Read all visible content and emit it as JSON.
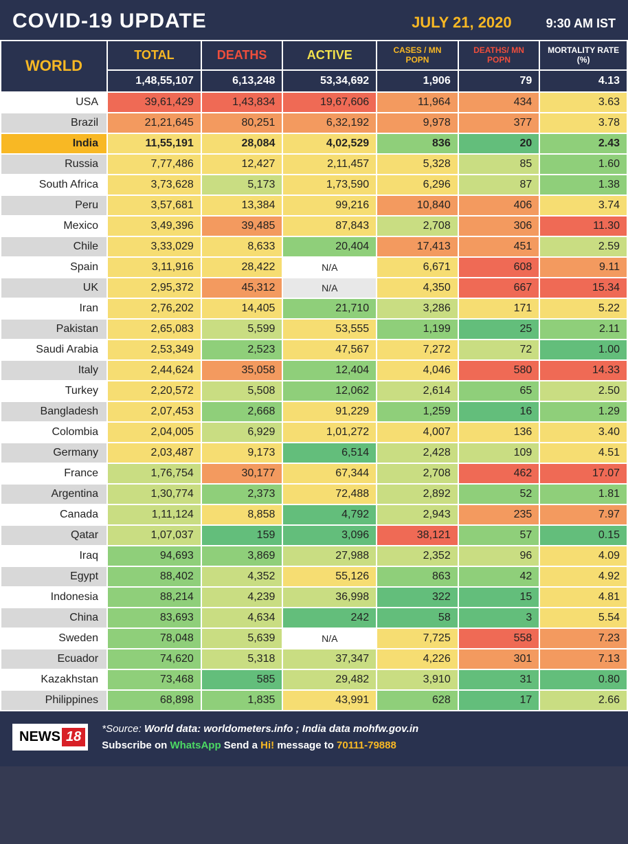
{
  "header": {
    "title": "COVID-19 UPDATE",
    "date": "JULY 21, 2020",
    "time": "9:30 AM IST"
  },
  "columns": {
    "world": "WORLD",
    "total": "TOTAL",
    "deaths": "DEATHS",
    "active": "ACTIVE",
    "cases_mn": "CASES / MN POPN",
    "deaths_mn": "DEATHS/ MN POPN",
    "mortality": "MORTALITY RATE (%)"
  },
  "worldrow": {
    "total": "1,48,55,107",
    "deaths": "6,13,248",
    "active": "53,34,692",
    "cases_mn": "1,906",
    "deaths_mn": "79",
    "mortality": "4.13"
  },
  "palette": {
    "r": "#ef6a55",
    "o": "#f39a5f",
    "y": "#f6dd72",
    "lg": "#c9dd82",
    "g": "#8fcf7a",
    "dg": "#63be7b",
    "w": "#ffffff",
    "gr": "#e8e8e8"
  },
  "col_widths": [
    "17%",
    "15%",
    "13%",
    "15%",
    "13%",
    "13%",
    "14%"
  ],
  "rows": [
    {
      "country": "USA",
      "alt": false,
      "highlight": false,
      "cells": [
        [
          "39,61,429",
          "r"
        ],
        [
          "1,43,834",
          "r"
        ],
        [
          "19,67,606",
          "r"
        ],
        [
          "11,964",
          "o"
        ],
        [
          "434",
          "o"
        ],
        [
          "3.63",
          "y"
        ]
      ]
    },
    {
      "country": "Brazil",
      "alt": true,
      "highlight": false,
      "cells": [
        [
          "21,21,645",
          "o"
        ],
        [
          "80,251",
          "o"
        ],
        [
          "6,32,192",
          "o"
        ],
        [
          "9,978",
          "o"
        ],
        [
          "377",
          "o"
        ],
        [
          "3.78",
          "y"
        ]
      ]
    },
    {
      "country": "India",
      "alt": false,
      "highlight": true,
      "cells": [
        [
          "11,55,191",
          "y"
        ],
        [
          "28,084",
          "y"
        ],
        [
          "4,02,529",
          "y"
        ],
        [
          "836",
          "g"
        ],
        [
          "20",
          "dg"
        ],
        [
          "2.43",
          "g"
        ]
      ]
    },
    {
      "country": "Russia",
      "alt": true,
      "highlight": false,
      "cells": [
        [
          "7,77,486",
          "y"
        ],
        [
          "12,427",
          "y"
        ],
        [
          "2,11,457",
          "y"
        ],
        [
          "5,328",
          "y"
        ],
        [
          "85",
          "lg"
        ],
        [
          "1.60",
          "g"
        ]
      ]
    },
    {
      "country": "South Africa",
      "alt": false,
      "highlight": false,
      "cells": [
        [
          "3,73,628",
          "y"
        ],
        [
          "5,173",
          "lg"
        ],
        [
          "1,73,590",
          "y"
        ],
        [
          "6,296",
          "y"
        ],
        [
          "87",
          "lg"
        ],
        [
          "1.38",
          "g"
        ]
      ]
    },
    {
      "country": "Peru",
      "alt": true,
      "highlight": false,
      "cells": [
        [
          "3,57,681",
          "y"
        ],
        [
          "13,384",
          "y"
        ],
        [
          "99,216",
          "y"
        ],
        [
          "10,840",
          "o"
        ],
        [
          "406",
          "o"
        ],
        [
          "3.74",
          "y"
        ]
      ]
    },
    {
      "country": "Mexico",
      "alt": false,
      "highlight": false,
      "cells": [
        [
          "3,49,396",
          "y"
        ],
        [
          "39,485",
          "o"
        ],
        [
          "87,843",
          "y"
        ],
        [
          "2,708",
          "lg"
        ],
        [
          "306",
          "o"
        ],
        [
          "11.30",
          "r"
        ]
      ]
    },
    {
      "country": "Chile",
      "alt": true,
      "highlight": false,
      "cells": [
        [
          "3,33,029",
          "y"
        ],
        [
          "8,633",
          "y"
        ],
        [
          "20,404",
          "g"
        ],
        [
          "17,413",
          "o"
        ],
        [
          "451",
          "o"
        ],
        [
          "2.59",
          "lg"
        ]
      ]
    },
    {
      "country": "Spain",
      "alt": false,
      "highlight": false,
      "cells": [
        [
          "3,11,916",
          "y"
        ],
        [
          "28,422",
          "y"
        ],
        [
          "N/A",
          "w"
        ],
        [
          "6,671",
          "y"
        ],
        [
          "608",
          "r"
        ],
        [
          "9.11",
          "o"
        ]
      ]
    },
    {
      "country": "UK",
      "alt": true,
      "highlight": false,
      "cells": [
        [
          "2,95,372",
          "y"
        ],
        [
          "45,312",
          "o"
        ],
        [
          "N/A",
          "gr"
        ],
        [
          "4,350",
          "y"
        ],
        [
          "667",
          "r"
        ],
        [
          "15.34",
          "r"
        ]
      ]
    },
    {
      "country": "Iran",
      "alt": false,
      "highlight": false,
      "cells": [
        [
          "2,76,202",
          "y"
        ],
        [
          "14,405",
          "y"
        ],
        [
          "21,710",
          "g"
        ],
        [
          "3,286",
          "lg"
        ],
        [
          "171",
          "y"
        ],
        [
          "5.22",
          "y"
        ]
      ]
    },
    {
      "country": "Pakistan",
      "alt": true,
      "highlight": false,
      "cells": [
        [
          "2,65,083",
          "y"
        ],
        [
          "5,599",
          "lg"
        ],
        [
          "53,555",
          "y"
        ],
        [
          "1,199",
          "g"
        ],
        [
          "25",
          "dg"
        ],
        [
          "2.11",
          "g"
        ]
      ]
    },
    {
      "country": "Saudi Arabia",
      "alt": false,
      "highlight": false,
      "cells": [
        [
          "2,53,349",
          "y"
        ],
        [
          "2,523",
          "g"
        ],
        [
          "47,567",
          "y"
        ],
        [
          "7,272",
          "y"
        ],
        [
          "72",
          "lg"
        ],
        [
          "1.00",
          "dg"
        ]
      ]
    },
    {
      "country": "Italy",
      "alt": true,
      "highlight": false,
      "cells": [
        [
          "2,44,624",
          "y"
        ],
        [
          "35,058",
          "o"
        ],
        [
          "12,404",
          "g"
        ],
        [
          "4,046",
          "y"
        ],
        [
          "580",
          "r"
        ],
        [
          "14.33",
          "r"
        ]
      ]
    },
    {
      "country": "Turkey",
      "alt": false,
      "highlight": false,
      "cells": [
        [
          "2,20,572",
          "y"
        ],
        [
          "5,508",
          "lg"
        ],
        [
          "12,062",
          "g"
        ],
        [
          "2,614",
          "lg"
        ],
        [
          "65",
          "g"
        ],
        [
          "2.50",
          "lg"
        ]
      ]
    },
    {
      "country": "Bangladesh",
      "alt": true,
      "highlight": false,
      "cells": [
        [
          "2,07,453",
          "y"
        ],
        [
          "2,668",
          "g"
        ],
        [
          "91,229",
          "y"
        ],
        [
          "1,259",
          "g"
        ],
        [
          "16",
          "dg"
        ],
        [
          "1.29",
          "g"
        ]
      ]
    },
    {
      "country": "Colombia",
      "alt": false,
      "highlight": false,
      "cells": [
        [
          "2,04,005",
          "y"
        ],
        [
          "6,929",
          "lg"
        ],
        [
          "1,01,272",
          "y"
        ],
        [
          "4,007",
          "y"
        ],
        [
          "136",
          "y"
        ],
        [
          "3.40",
          "y"
        ]
      ]
    },
    {
      "country": "Germany",
      "alt": true,
      "highlight": false,
      "cells": [
        [
          "2,03,487",
          "y"
        ],
        [
          "9,173",
          "y"
        ],
        [
          "6,514",
          "dg"
        ],
        [
          "2,428",
          "lg"
        ],
        [
          "109",
          "lg"
        ],
        [
          "4.51",
          "y"
        ]
      ]
    },
    {
      "country": "France",
      "alt": false,
      "highlight": false,
      "cells": [
        [
          "1,76,754",
          "lg"
        ],
        [
          "30,177",
          "o"
        ],
        [
          "67,344",
          "y"
        ],
        [
          "2,708",
          "lg"
        ],
        [
          "462",
          "r"
        ],
        [
          "17.07",
          "r"
        ]
      ]
    },
    {
      "country": "Argentina",
      "alt": true,
      "highlight": false,
      "cells": [
        [
          "1,30,774",
          "lg"
        ],
        [
          "2,373",
          "g"
        ],
        [
          "72,488",
          "y"
        ],
        [
          "2,892",
          "lg"
        ],
        [
          "52",
          "g"
        ],
        [
          "1.81",
          "g"
        ]
      ]
    },
    {
      "country": "Canada",
      "alt": false,
      "highlight": false,
      "cells": [
        [
          "1,11,124",
          "lg"
        ],
        [
          "8,858",
          "y"
        ],
        [
          "4,792",
          "dg"
        ],
        [
          "2,943",
          "lg"
        ],
        [
          "235",
          "o"
        ],
        [
          "7.97",
          "o"
        ]
      ]
    },
    {
      "country": "Qatar",
      "alt": true,
      "highlight": false,
      "cells": [
        [
          "1,07,037",
          "lg"
        ],
        [
          "159",
          "dg"
        ],
        [
          "3,096",
          "dg"
        ],
        [
          "38,121",
          "r"
        ],
        [
          "57",
          "g"
        ],
        [
          "0.15",
          "dg"
        ]
      ]
    },
    {
      "country": "Iraq",
      "alt": false,
      "highlight": false,
      "cells": [
        [
          "94,693",
          "g"
        ],
        [
          "3,869",
          "g"
        ],
        [
          "27,988",
          "lg"
        ],
        [
          "2,352",
          "lg"
        ],
        [
          "96",
          "lg"
        ],
        [
          "4.09",
          "y"
        ]
      ]
    },
    {
      "country": "Egypt",
      "alt": true,
      "highlight": false,
      "cells": [
        [
          "88,402",
          "g"
        ],
        [
          "4,352",
          "lg"
        ],
        [
          "55,126",
          "y"
        ],
        [
          "863",
          "g"
        ],
        [
          "42",
          "g"
        ],
        [
          "4.92",
          "y"
        ]
      ]
    },
    {
      "country": "Indonesia",
      "alt": false,
      "highlight": false,
      "cells": [
        [
          "88,214",
          "g"
        ],
        [
          "4,239",
          "lg"
        ],
        [
          "36,998",
          "lg"
        ],
        [
          "322",
          "dg"
        ],
        [
          "15",
          "dg"
        ],
        [
          "4.81",
          "y"
        ]
      ]
    },
    {
      "country": "China",
      "alt": true,
      "highlight": false,
      "cells": [
        [
          "83,693",
          "g"
        ],
        [
          "4,634",
          "lg"
        ],
        [
          "242",
          "dg"
        ],
        [
          "58",
          "dg"
        ],
        [
          "3",
          "dg"
        ],
        [
          "5.54",
          "y"
        ]
      ]
    },
    {
      "country": "Sweden",
      "alt": false,
      "highlight": false,
      "cells": [
        [
          "78,048",
          "g"
        ],
        [
          "5,639",
          "lg"
        ],
        [
          "N/A",
          "w"
        ],
        [
          "7,725",
          "y"
        ],
        [
          "558",
          "r"
        ],
        [
          "7.23",
          "o"
        ]
      ]
    },
    {
      "country": "Ecuador",
      "alt": true,
      "highlight": false,
      "cells": [
        [
          "74,620",
          "g"
        ],
        [
          "5,318",
          "lg"
        ],
        [
          "37,347",
          "lg"
        ],
        [
          "4,226",
          "y"
        ],
        [
          "301",
          "o"
        ],
        [
          "7.13",
          "o"
        ]
      ]
    },
    {
      "country": "Kazakhstan",
      "alt": false,
      "highlight": false,
      "cells": [
        [
          "73,468",
          "g"
        ],
        [
          "585",
          "dg"
        ],
        [
          "29,482",
          "lg"
        ],
        [
          "3,910",
          "lg"
        ],
        [
          "31",
          "dg"
        ],
        [
          "0.80",
          "dg"
        ]
      ]
    },
    {
      "country": "Philippines",
      "alt": true,
      "highlight": false,
      "cells": [
        [
          "68,898",
          "g"
        ],
        [
          "1,835",
          "g"
        ],
        [
          "43,991",
          "y"
        ],
        [
          "628",
          "g"
        ],
        [
          "17",
          "dg"
        ],
        [
          "2.66",
          "lg"
        ]
      ]
    }
  ],
  "footer": {
    "logo_a": "NEWS",
    "logo_b": "18",
    "source_label": "*Source:",
    "source_text": "World data: worldometers.info ; India data mohfw.gov.in",
    "sub_a": "Subscribe on",
    "sub_wa": "WhatsApp",
    "sub_b": "Send a",
    "sub_hi": "Hi!",
    "sub_c": "message to",
    "sub_num": "70111-79888"
  }
}
